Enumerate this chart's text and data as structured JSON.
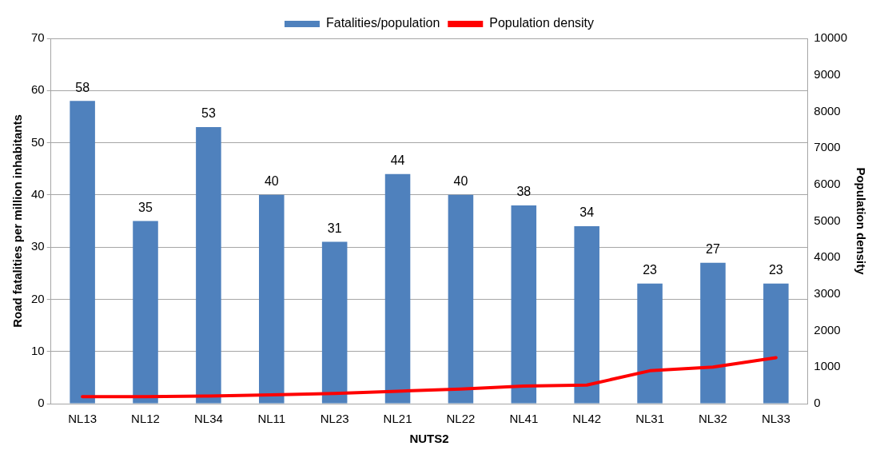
{
  "chart_data": {
    "type": "bar",
    "xlabel": "NUTS2",
    "ylabel": "Road fatalities per million inhabitants",
    "y2label": "Population density",
    "categories": [
      "NL13",
      "NL12",
      "NL34",
      "NL11",
      "NL23",
      "NL21",
      "NL22",
      "NL41",
      "NL42",
      "NL31",
      "NL32",
      "NL33"
    ],
    "series": [
      {
        "name": "Fatalities/population",
        "color": "#4f81bd",
        "values": [
          58,
          35,
          53,
          40,
          31,
          44,
          40,
          38,
          34,
          23,
          27,
          23
        ],
        "value_labels": [
          "58",
          "35",
          "53",
          "40",
          "31",
          "44",
          "40",
          "38",
          "34",
          "23",
          "27",
          "23"
        ]
      },
      {
        "name": "Population density",
        "type": "line",
        "axis": "y2",
        "color": "#ff0000",
        "values": [
          190,
          190,
          210,
          240,
          280,
          340,
          400,
          480,
          510,
          900,
          1000,
          1260
        ]
      }
    ],
    "ylim": [
      0,
      70
    ],
    "yticks": [
      0,
      10,
      20,
      30,
      40,
      50,
      60,
      70
    ],
    "y2lim": [
      0,
      10000
    ],
    "y2ticks": [
      0,
      1000,
      2000,
      3000,
      4000,
      5000,
      6000,
      7000,
      8000,
      9000,
      10000
    ],
    "grid": "y",
    "legend": "top",
    "marker": "none",
    "line_style": "solid"
  }
}
